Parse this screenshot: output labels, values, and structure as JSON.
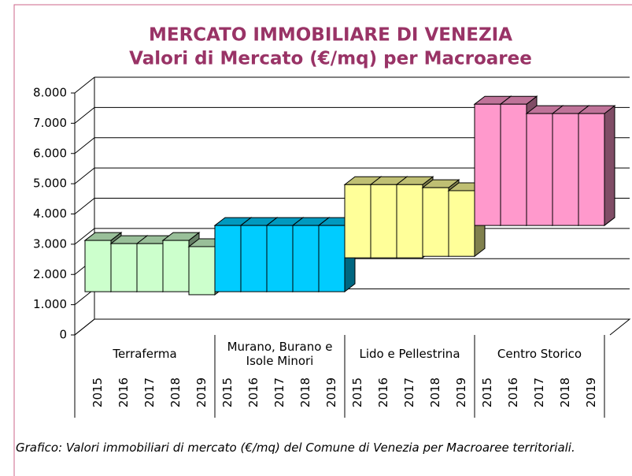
{
  "chart_data": {
    "type": "bar",
    "title": "MERCATO IMMOBILIARE DI VENEZIA",
    "subtitle": "Valori di Mercato (€/mq) per Macroaree",
    "caption": "Grafico: Valori immobiliari di mercato (€/mq) del Comune di Venezia per Macroaree territoriali.",
    "ylim": [
      0,
      8000
    ],
    "yticks": [
      0,
      {
        "value": 1000,
        "label": "1.000"
      },
      {
        "value": 2000,
        "label": "2.000"
      },
      {
        "value": 3000,
        "label": "3.000"
      },
      {
        "value": 4000,
        "label": "4.000"
      },
      {
        "value": 5000,
        "label": "5.000"
      },
      {
        "value": 6000,
        "label": "6.000"
      },
      {
        "value": 7000,
        "label": "7.000"
      },
      {
        "value": 8000,
        "label": "8.000"
      }
    ],
    "grid": true,
    "series": [
      {
        "name": "Terraferma",
        "color": "#ccffcc",
        "categories": [
          "2015",
          "2016",
          "2017",
          "2018",
          "2019"
        ],
        "low": [
          1430,
          1430,
          1430,
          1430,
          1330
        ],
        "high": [
          3125,
          3020,
          3020,
          3125,
          2920
        ]
      },
      {
        "name": "Murano, Burano e Isole Minori",
        "color": "#00ccff",
        "categories": [
          "2015",
          "2016",
          "2017",
          "2018",
          "2019"
        ],
        "low": [
          1430,
          1430,
          1430,
          1430,
          1430
        ],
        "high": [
          3620,
          3620,
          3620,
          3620,
          3620
        ]
      },
      {
        "name": "Lido e Pellestrina",
        "color": "#ffff99",
        "categories": [
          "2015",
          "2016",
          "2017",
          "2018",
          "2019"
        ],
        "low": [
          2550,
          2550,
          2550,
          2600,
          2600
        ],
        "high": [
          4970,
          4970,
          4970,
          4870,
          4770
        ]
      },
      {
        "name": "Centro Storico",
        "color": "#ff99cc",
        "categories": [
          "2015",
          "2016",
          "2017",
          "2018",
          "2019"
        ],
        "low": [
          3620,
          3620,
          3620,
          3620,
          3620
        ],
        "high": [
          7630,
          7630,
          7320,
          7320,
          7320
        ]
      }
    ]
  }
}
